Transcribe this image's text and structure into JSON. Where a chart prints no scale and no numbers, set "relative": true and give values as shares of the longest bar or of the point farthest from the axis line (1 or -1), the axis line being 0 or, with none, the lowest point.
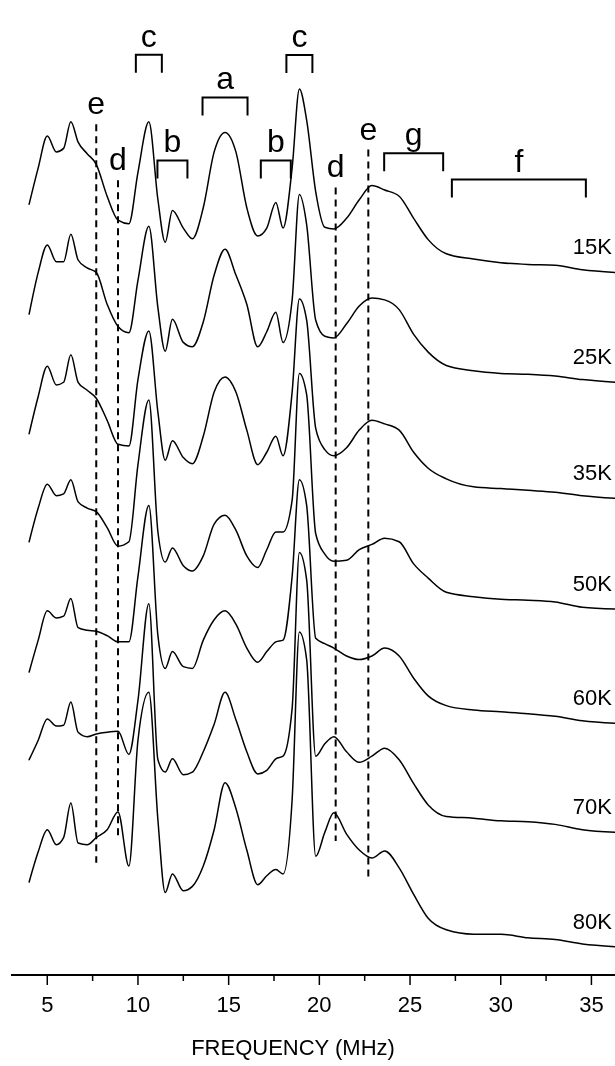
{
  "chart_data": {
    "type": "line",
    "relative": true,
    "xlabel": "FREQUENCY (MHz)",
    "xlim": [
      3,
      36.3
    ],
    "xticks": [
      5,
      {
        "value": 7.5,
        "label": null
      },
      10,
      {
        "value": 12.5,
        "label": null
      },
      15,
      {
        "value": 17.5,
        "label": null
      },
      20,
      {
        "value": 22.5,
        "label": null
      },
      25,
      {
        "value": 27.5,
        "label": null
      },
      30,
      {
        "value": 32.5,
        "label": null
      },
      35
    ],
    "x": [
      4.0,
      4.5,
      5.0,
      5.5,
      5.9,
      6.3,
      6.7,
      7.2,
      7.7,
      8.3,
      8.9,
      9.5,
      10.0,
      10.6,
      11.1,
      11.5,
      11.9,
      12.5,
      13.0,
      13.6,
      14.2,
      14.8,
      15.4,
      16.0,
      16.6,
      17.1,
      17.6,
      18.0,
      18.5,
      18.9,
      19.3,
      19.8,
      20.3,
      20.8,
      21.5,
      22.2,
      22.9,
      23.6,
      24.4,
      25.2,
      26.0,
      27.0,
      28.5,
      30.0,
      31.5,
      33.0,
      34.5,
      36.3
    ],
    "series": [
      {
        "name": "15K",
        "color": "#000000",
        "values": [
          0.87,
          0.911,
          0.947,
          0.929,
          0.933,
          0.963,
          0.94,
          0.927,
          0.915,
          0.879,
          0.852,
          0.848,
          0.906,
          0.963,
          0.875,
          0.827,
          0.863,
          0.843,
          0.831,
          0.866,
          0.929,
          0.951,
          0.929,
          0.866,
          0.834,
          0.843,
          0.872,
          0.843,
          0.911,
          1.0,
          0.965,
          0.884,
          0.844,
          0.842,
          0.854,
          0.875,
          0.891,
          0.886,
          0.879,
          0.854,
          0.83,
          0.814,
          0.808,
          0.804,
          0.802,
          0.801,
          0.796,
          0.793
        ]
      },
      {
        "name": "25K",
        "color": "#000000",
        "values": [
          0.746,
          0.793,
          0.824,
          0.805,
          0.805,
          0.836,
          0.807,
          0.798,
          0.793,
          0.757,
          0.732,
          0.725,
          0.784,
          0.845,
          0.753,
          0.704,
          0.74,
          0.714,
          0.709,
          0.737,
          0.79,
          0.819,
          0.79,
          0.757,
          0.709,
          0.726,
          0.748,
          0.714,
          0.762,
          0.881,
          0.847,
          0.739,
          0.721,
          0.719,
          0.735,
          0.755,
          0.764,
          0.762,
          0.751,
          0.723,
          0.703,
          0.688,
          0.682,
          0.679,
          0.678,
          0.676,
          0.672,
          0.669
        ]
      },
      {
        "name": "35K",
        "color": "#000000",
        "values": [
          0.611,
          0.653,
          0.687,
          0.666,
          0.669,
          0.7,
          0.669,
          0.66,
          0.651,
          0.626,
          0.599,
          0.597,
          0.672,
          0.727,
          0.635,
          0.581,
          0.603,
          0.584,
          0.577,
          0.608,
          0.658,
          0.675,
          0.658,
          0.615,
          0.576,
          0.59,
          0.608,
          0.586,
          0.658,
          0.763,
          0.739,
          0.617,
          0.593,
          0.586,
          0.595,
          0.615,
          0.626,
          0.622,
          0.615,
          0.59,
          0.572,
          0.56,
          0.551,
          0.549,
          0.547,
          0.545,
          0.541,
          0.538
        ]
      },
      {
        "name": "50K",
        "color": "#000000",
        "values": [
          0.489,
          0.527,
          0.554,
          0.541,
          0.543,
          0.559,
          0.534,
          0.527,
          0.523,
          0.505,
          0.484,
          0.489,
          0.576,
          0.649,
          0.5,
          0.466,
          0.482,
          0.462,
          0.456,
          0.473,
          0.509,
          0.519,
          0.502,
          0.473,
          0.46,
          0.48,
          0.5,
          0.5,
          0.536,
          0.679,
          0.655,
          0.498,
          0.475,
          0.467,
          0.468,
          0.48,
          0.486,
          0.493,
          0.489,
          0.464,
          0.448,
          0.432,
          0.427,
          0.424,
          0.423,
          0.421,
          0.415,
          0.413
        ]
      },
      {
        "name": "60K",
        "color": "#000000",
        "values": [
          0.342,
          0.378,
          0.411,
          0.403,
          0.405,
          0.425,
          0.392,
          0.389,
          0.388,
          0.383,
          0.376,
          0.376,
          0.45,
          0.53,
          0.383,
          0.346,
          0.365,
          0.348,
          0.346,
          0.378,
          0.401,
          0.411,
          0.396,
          0.369,
          0.353,
          0.365,
          0.376,
          0.378,
          0.45,
          0.559,
          0.53,
          0.38,
          0.374,
          0.369,
          0.36,
          0.356,
          0.36,
          0.369,
          0.36,
          0.335,
          0.315,
          0.304,
          0.299,
          0.297,
          0.295,
          0.292,
          0.287,
          0.284
        ]
      },
      {
        "name": "70K",
        "color": "#000000",
        "values": [
          0.243,
          0.265,
          0.289,
          0.281,
          0.282,
          0.308,
          0.274,
          0.269,
          0.272,
          0.274,
          0.275,
          0.249,
          0.31,
          0.419,
          0.243,
          0.229,
          0.244,
          0.226,
          0.229,
          0.252,
          0.283,
          0.319,
          0.288,
          0.252,
          0.227,
          0.231,
          0.244,
          0.247,
          0.301,
          0.477,
          0.446,
          0.247,
          0.261,
          0.269,
          0.252,
          0.24,
          0.247,
          0.256,
          0.243,
          0.216,
          0.192,
          0.179,
          0.177,
          0.174,
          0.173,
          0.17,
          0.164,
          0.161
        ]
      },
      {
        "name": "80K",
        "color": "#000000",
        "values": [
          0.105,
          0.139,
          0.164,
          0.147,
          0.155,
          0.194,
          0.149,
          0.147,
          0.155,
          0.164,
          0.184,
          0.123,
          0.265,
          0.319,
          0.175,
          0.093,
          0.114,
          0.095,
          0.1,
          0.123,
          0.164,
          0.217,
          0.188,
          0.141,
          0.102,
          0.112,
          0.119,
          0.114,
          0.198,
          0.387,
          0.356,
          0.134,
          0.161,
          0.183,
          0.159,
          0.141,
          0.132,
          0.14,
          0.121,
          0.091,
          0.064,
          0.051,
          0.046,
          0.046,
          0.042,
          0.04,
          0.035,
          0.032
        ]
      }
    ],
    "ref_lines": [
      {
        "axis": "x",
        "value": 7.7,
        "label": "e",
        "line_style": "dashed",
        "color": "#000000"
      },
      {
        "axis": "x",
        "value": 8.9,
        "label": "d",
        "line_style": "dashed",
        "color": "#000000"
      },
      {
        "axis": "x",
        "value": 20.9,
        "label": "d",
        "line_style": "dashed",
        "color": "#000000"
      },
      {
        "axis": "x",
        "value": 22.7,
        "label": "e",
        "line_style": "dashed",
        "color": "#000000"
      }
    ],
    "annotations": [
      {
        "text": "c",
        "x": 10.6,
        "y": 0.963
      },
      {
        "text": "b",
        "x": 11.9,
        "y": 0.863
      },
      {
        "text": "a",
        "x": 14.8,
        "y": 0.951
      },
      {
        "text": "b",
        "x": 17.6,
        "y": 0.872
      },
      {
        "text": "c",
        "x": 18.9,
        "y": 1.0
      },
      {
        "text": "g",
        "x": 25.2,
        "y": 0.854
      },
      {
        "text": "f",
        "x": 31.0,
        "y": 0.803
      }
    ]
  }
}
